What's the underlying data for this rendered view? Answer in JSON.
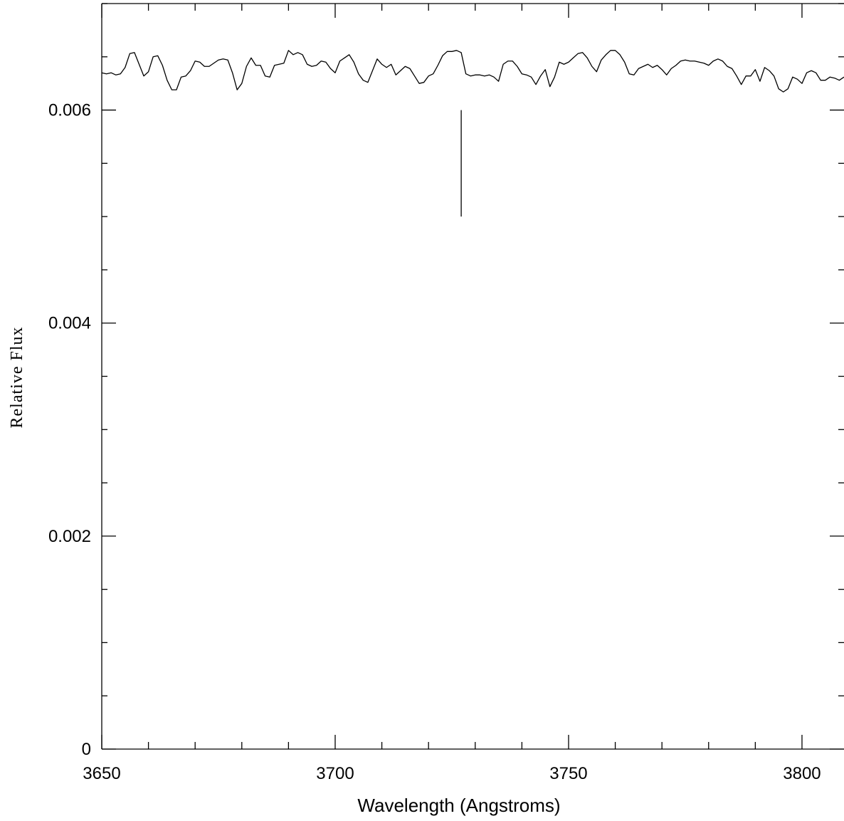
{
  "chart_data": {
    "type": "line",
    "title": "",
    "xlabel": "Wavelength (Angstroms)",
    "ylabel": "Relative Flux",
    "xlim": [
      3650,
      3809
    ],
    "ylim": [
      0,
      0.007
    ],
    "x_ticks_major": [
      3650,
      3700,
      3750,
      3800
    ],
    "x_tick_labels": [
      "3650",
      "3700",
      "3750",
      "3800"
    ],
    "x_ticks_minor_step": 10,
    "y_ticks_major": [
      0,
      0.002,
      0.004,
      0.006
    ],
    "y_tick_labels": [
      "0",
      "0.002",
      "0.004",
      "0.006"
    ],
    "y_ticks_minor_step": 0.0005,
    "grid": false,
    "legend": "none",
    "marker_line": {
      "x": 3727,
      "y_from": 0.005,
      "y_to": 0.006
    },
    "series": [
      {
        "x": [
          3650,
          3651,
          3652,
          3653,
          3654,
          3655,
          3656,
          3657,
          3658,
          3659,
          3660,
          3661,
          3662,
          3663,
          3664,
          3665,
          3666,
          3667,
          3668,
          3669,
          3670,
          3671,
          3672,
          3673,
          3674,
          3675,
          3676,
          3677,
          3678,
          3679,
          3680,
          3681,
          3682,
          3683,
          3684,
          3685,
          3686,
          3687,
          3688,
          3689,
          3690,
          3691,
          3692,
          3693,
          3694,
          3695,
          3696,
          3697,
          3698,
          3699,
          3700,
          3701,
          3702,
          3703,
          3704,
          3705,
          3706,
          3707,
          3708,
          3709,
          3710,
          3711,
          3712,
          3713,
          3714,
          3715,
          3716,
          3717,
          3718,
          3719,
          3720,
          3721,
          3722,
          3723,
          3724,
          3725,
          3726,
          3727,
          3728,
          3729,
          3730,
          3731,
          3732,
          3733,
          3734,
          3735,
          3736,
          3737,
          3738,
          3739,
          3740,
          3741,
          3742,
          3743,
          3744,
          3745,
          3746,
          3747,
          3748,
          3749,
          3750,
          3751,
          3752,
          3753,
          3754,
          3755,
          3756,
          3757,
          3758,
          3759,
          3760,
          3761,
          3762,
          3763,
          3764,
          3765,
          3766,
          3767,
          3768,
          3769,
          3770,
          3771,
          3772,
          3773,
          3774,
          3775,
          3776,
          3777,
          3778,
          3779,
          3780,
          3781,
          3782,
          3783,
          3784,
          3785,
          3786,
          3787,
          3788,
          3789,
          3790,
          3791,
          3792,
          3793,
          3794,
          3795,
          3796,
          3797,
          3798,
          3799,
          3800,
          3801,
          3802,
          3803,
          3804,
          3805,
          3806,
          3807,
          3808,
          3809
        ],
        "values": [
          0.00635,
          0.00634,
          0.00635,
          0.00633,
          0.00634,
          0.0064,
          0.00653,
          0.00654,
          0.00643,
          0.00632,
          0.00636,
          0.0065,
          0.00651,
          0.00642,
          0.00628,
          0.00619,
          0.00619,
          0.00631,
          0.00632,
          0.00637,
          0.00646,
          0.00645,
          0.00641,
          0.00641,
          0.00644,
          0.00647,
          0.00648,
          0.00647,
          0.00635,
          0.00619,
          0.00625,
          0.00641,
          0.00649,
          0.00642,
          0.00642,
          0.00632,
          0.00631,
          0.00642,
          0.00643,
          0.00644,
          0.00656,
          0.00652,
          0.00654,
          0.00652,
          0.00643,
          0.00641,
          0.00642,
          0.00646,
          0.00645,
          0.00639,
          0.00635,
          0.00646,
          0.00649,
          0.00652,
          0.00645,
          0.00634,
          0.00628,
          0.00626,
          0.00637,
          0.00648,
          0.00643,
          0.0064,
          0.00643,
          0.00633,
          0.00637,
          0.00641,
          0.00639,
          0.00632,
          0.00625,
          0.00626,
          0.00632,
          0.00634,
          0.00642,
          0.00651,
          0.00655,
          0.00655,
          0.00656,
          0.00654,
          0.00634,
          0.00632,
          0.00633,
          0.00633,
          0.00632,
          0.00633,
          0.00631,
          0.00627,
          0.00643,
          0.00646,
          0.00646,
          0.00641,
          0.00634,
          0.00633,
          0.00631,
          0.00624,
          0.00632,
          0.00638,
          0.00622,
          0.00631,
          0.00645,
          0.00643,
          0.00645,
          0.00649,
          0.00653,
          0.00654,
          0.00649,
          0.00641,
          0.00636,
          0.00647,
          0.00652,
          0.00656,
          0.00656,
          0.00652,
          0.00645,
          0.00634,
          0.00633,
          0.00639,
          0.00641,
          0.00643,
          0.0064,
          0.00642,
          0.00638,
          0.00633,
          0.00639,
          0.00642,
          0.00646,
          0.00647,
          0.00646,
          0.00646,
          0.00645,
          0.00644,
          0.00642,
          0.00646,
          0.00648,
          0.00646,
          0.00641,
          0.00639,
          0.00632,
          0.00624,
          0.00632,
          0.00632,
          0.00638,
          0.00627,
          0.0064,
          0.00637,
          0.00632,
          0.0062,
          0.00617,
          0.0062,
          0.00631,
          0.00629,
          0.00625,
          0.00635,
          0.00637,
          0.00635,
          0.00628,
          0.00628,
          0.00631,
          0.0063,
          0.00628,
          0.00631
        ]
      }
    ]
  }
}
